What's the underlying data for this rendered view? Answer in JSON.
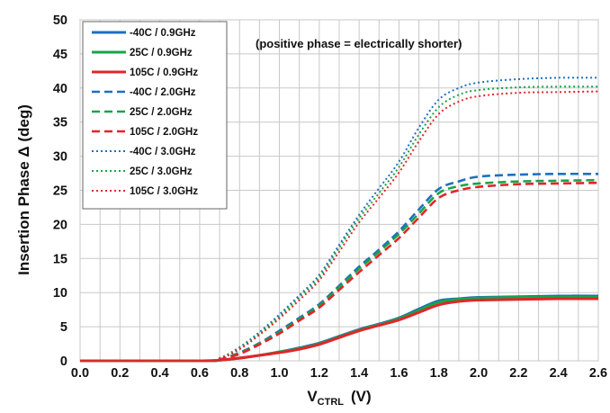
{
  "chart_data": {
    "type": "line",
    "annotation": "(positive phase = electrically shorter)",
    "xlabel_main": "V",
    "xlabel_sub": "CTRL",
    "xlabel_unit": "(V)",
    "ylabel": "Insertion Phase Δ  (deg)",
    "xlim": [
      0,
      2.6
    ],
    "ylim": [
      0,
      50
    ],
    "x_ticks": [
      "0.0",
      "0.2",
      "0.4",
      "0.6",
      "0.8",
      "1.0",
      "1.2",
      "1.4",
      "1.6",
      "1.8",
      "2.0",
      "2.2",
      "2.4",
      "2.6"
    ],
    "y_ticks": [
      "0",
      "5",
      "10",
      "15",
      "20",
      "25",
      "30",
      "35",
      "40",
      "45",
      "50"
    ],
    "grid": true,
    "legend_position": "top-left",
    "series": [
      {
        "name": "-40C /  0.9GHz",
        "color": "#1f6fc0",
        "style": "solid",
        "x": [
          0,
          0.6,
          0.7,
          0.8,
          0.9,
          1.0,
          1.1,
          1.2,
          1.3,
          1.4,
          1.5,
          1.6,
          1.7,
          1.8,
          1.9,
          2.0,
          2.2,
          2.4,
          2.6
        ],
        "y": [
          0,
          0,
          0.1,
          0.4,
          0.8,
          1.3,
          1.9,
          2.6,
          3.6,
          4.6,
          5.4,
          6.3,
          7.6,
          8.8,
          9.1,
          9.3,
          9.4,
          9.5,
          9.5
        ]
      },
      {
        "name": "25C /  0.9GHz",
        "color": "#17a548",
        "style": "solid",
        "x": [
          0,
          0.6,
          0.7,
          0.8,
          0.9,
          1.0,
          1.1,
          1.2,
          1.3,
          1.4,
          1.5,
          1.6,
          1.7,
          1.8,
          1.9,
          2.0,
          2.2,
          2.4,
          2.6
        ],
        "y": [
          0,
          0,
          0.1,
          0.4,
          0.8,
          1.3,
          1.8,
          2.5,
          3.5,
          4.5,
          5.3,
          6.2,
          7.4,
          8.6,
          9.0,
          9.2,
          9.3,
          9.3,
          9.3
        ]
      },
      {
        "name": "105C /  0.9GHz",
        "color": "#e32528",
        "style": "solid",
        "x": [
          0,
          0.6,
          0.7,
          0.8,
          0.9,
          1.0,
          1.1,
          1.2,
          1.3,
          1.4,
          1.5,
          1.6,
          1.7,
          1.8,
          1.9,
          2.0,
          2.2,
          2.4,
          2.6
        ],
        "y": [
          0,
          0,
          0.1,
          0.4,
          0.8,
          1.2,
          1.7,
          2.4,
          3.4,
          4.4,
          5.2,
          6.0,
          7.1,
          8.2,
          8.7,
          8.9,
          9.0,
          9.1,
          9.1
        ]
      },
      {
        "name": "-40C /  2.0GHz",
        "color": "#1f6fc0",
        "style": "dashed",
        "x": [
          0,
          0.6,
          0.7,
          0.8,
          0.9,
          1.0,
          1.1,
          1.2,
          1.3,
          1.4,
          1.5,
          1.6,
          1.7,
          1.8,
          1.9,
          2.0,
          2.2,
          2.4,
          2.6
        ],
        "y": [
          0,
          0,
          0.2,
          1.2,
          2.6,
          4.4,
          6.3,
          8.3,
          11.0,
          13.8,
          16.3,
          19.0,
          22.2,
          25.2,
          26.3,
          27.0,
          27.3,
          27.4,
          27.4
        ]
      },
      {
        "name": "25C /  2.0GHz",
        "color": "#17a548",
        "style": "dashed",
        "x": [
          0,
          0.6,
          0.7,
          0.8,
          0.9,
          1.0,
          1.1,
          1.2,
          1.3,
          1.4,
          1.5,
          1.6,
          1.7,
          1.8,
          1.9,
          2.0,
          2.2,
          2.4,
          2.6
        ],
        "y": [
          0,
          0,
          0.2,
          1.1,
          2.5,
          4.2,
          6.1,
          8.1,
          10.8,
          13.5,
          16.0,
          18.6,
          21.6,
          24.6,
          25.6,
          26.0,
          26.3,
          26.4,
          26.5
        ]
      },
      {
        "name": "105C /  2.0GHz",
        "color": "#e32528",
        "style": "dashed",
        "x": [
          0,
          0.6,
          0.7,
          0.8,
          0.9,
          1.0,
          1.1,
          1.2,
          1.3,
          1.4,
          1.5,
          1.6,
          1.7,
          1.8,
          1.9,
          2.0,
          2.2,
          2.4,
          2.6
        ],
        "y": [
          0,
          0,
          0.2,
          1.0,
          2.4,
          4.0,
          5.9,
          7.8,
          10.4,
          13.0,
          15.5,
          18.0,
          21.0,
          23.9,
          25.0,
          25.5,
          25.9,
          26.0,
          26.1
        ]
      },
      {
        "name": "-40C /  3.0GHz",
        "color": "#1f6fc0",
        "style": "dotted",
        "x": [
          0,
          0.6,
          0.7,
          0.8,
          0.9,
          1.0,
          1.1,
          1.2,
          1.3,
          1.4,
          1.5,
          1.6,
          1.7,
          1.8,
          1.9,
          2.0,
          2.2,
          2.4,
          2.6
        ],
        "y": [
          0,
          0,
          0.4,
          2.0,
          4.2,
          6.8,
          9.6,
          12.6,
          17.0,
          21.4,
          25.3,
          29.2,
          34.2,
          38.3,
          40.0,
          40.8,
          41.3,
          41.5,
          41.5
        ]
      },
      {
        "name": "25C /  3.0GHz",
        "color": "#17a548",
        "style": "dotted",
        "x": [
          0,
          0.6,
          0.7,
          0.8,
          0.9,
          1.0,
          1.1,
          1.2,
          1.3,
          1.4,
          1.5,
          1.6,
          1.7,
          1.8,
          1.9,
          2.0,
          2.2,
          2.4,
          2.6
        ],
        "y": [
          0,
          0,
          0.4,
          1.9,
          4.0,
          6.5,
          9.3,
          12.2,
          16.6,
          20.9,
          24.6,
          28.4,
          33.2,
          37.2,
          39.0,
          39.7,
          40.1,
          40.2,
          40.2
        ]
      },
      {
        "name": "105C /  3.0GHz",
        "color": "#e32528",
        "style": "dotted",
        "x": [
          0,
          0.6,
          0.7,
          0.8,
          0.9,
          1.0,
          1.1,
          1.2,
          1.3,
          1.4,
          1.5,
          1.6,
          1.7,
          1.8,
          1.9,
          2.0,
          2.2,
          2.4,
          2.6
        ],
        "y": [
          0,
          0,
          0.3,
          1.7,
          3.8,
          6.2,
          8.9,
          11.8,
          16.0,
          20.3,
          23.9,
          27.6,
          32.2,
          36.2,
          38.0,
          38.8,
          39.3,
          39.4,
          39.5
        ]
      }
    ]
  }
}
